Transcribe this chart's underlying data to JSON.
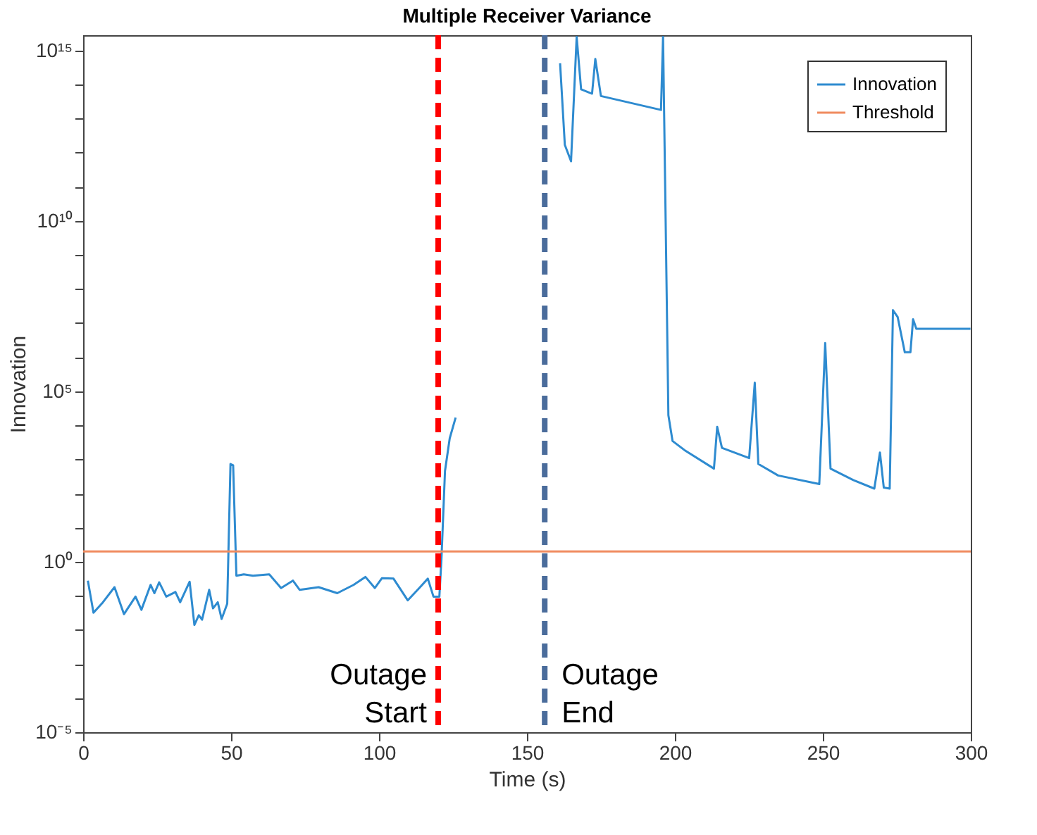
{
  "chart_data": {
    "type": "line",
    "title": "Multiple Receiver Variance",
    "xlabel": "Time (s)",
    "ylabel": "Innovation",
    "series": [
      {
        "name": "Innovation",
        "color": "#2e8bd0",
        "x": [
          1.6,
          3.5,
          6.7,
          10.6,
          13.8,
          17.7,
          19.7,
          22.8,
          24.1,
          25.7,
          28.1,
          31.2,
          32.8,
          36,
          37.6,
          39.1,
          40.2,
          42.6,
          43.9,
          45.5,
          46.8,
          48.7,
          49.8,
          50.7,
          51.8,
          54.3,
          57.4,
          62.9,
          66.9,
          70.9,
          73.2,
          79.6,
          85.9,
          91.4,
          95.4,
          98.6,
          101,
          104.9,
          109.7,
          113.6,
          116.5,
          118.4,
          120.4,
          121.1,
          122.3,
          123.9,
          125.9,
          140,
          161.2,
          162.8,
          164.9,
          166.8,
          168.3,
          172,
          173.1,
          175,
          195.3,
          196,
          197.8,
          199.2,
          203.2,
          213.2,
          214.3,
          215.9,
          225.1,
          227,
          228.2,
          234.9,
          248.8,
          250.8,
          252.6,
          260.3,
          267.4,
          269.3,
          270.6,
          272.6,
          273.7,
          275.3,
          277.7,
          279.6,
          280.5,
          281.6,
          299.9
        ],
        "values": [
          0.28,
          0.032,
          0.065,
          0.18,
          0.029,
          0.095,
          0.039,
          0.21,
          0.12,
          0.25,
          0.095,
          0.13,
          0.065,
          0.26,
          0.014,
          0.027,
          0.02,
          0.15,
          0.043,
          0.065,
          0.021,
          0.059,
          740,
          680,
          0.39,
          0.43,
          0.39,
          0.43,
          0.17,
          0.28,
          0.15,
          0.18,
          0.12,
          0.21,
          0.36,
          0.17,
          0.33,
          0.32,
          0.074,
          0.17,
          0.32,
          0.095,
          0.095,
          1.2,
          460,
          4200,
          17000,
          null,
          420000000000000.0,
          1700000000000.0,
          560000000000.0,
          2500000000000000.0,
          72000000000000.0,
          54000000000000.0,
          560000000000000.0,
          46000000000000.0,
          18000000000000.0,
          2500000000000000.0,
          20000,
          3500,
          1900,
          540,
          9100,
          2200,
          1100,
          180000,
          740,
          340,
          190,
          2600000.0,
          540,
          250,
          140,
          1600,
          150,
          140,
          24000000.0,
          15000000.0,
          1400000.0,
          1400000.0,
          13000000.0,
          6800000.0,
          6800000.0
        ]
      },
      {
        "name": "Threshold",
        "color": "#f08b5f",
        "x": [
          0,
          300
        ],
        "values": [
          2,
          2
        ]
      }
    ],
    "ref_lines": [
      {
        "axis": "x",
        "value": 120,
        "label": "Outage Start",
        "color": "#ff0000",
        "line_style": "dashed"
      },
      {
        "axis": "x",
        "value": 156,
        "label": "Outage End",
        "color": "#4a6c9b",
        "line_style": "dashed"
      }
    ],
    "log": "y",
    "xlim": [
      0,
      300
    ],
    "xticks": [
      0,
      50,
      100,
      150,
      200,
      250,
      300
    ],
    "ylim": [
      1e-05,
      2800000000000000.0
    ],
    "yticks": [
      {
        "value": 1e-05,
        "label": "10⁻⁵"
      },
      {
        "value": 0.0001,
        "label": null
      },
      {
        "value": 0.001,
        "label": null
      },
      {
        "value": 0.01,
        "label": null
      },
      {
        "value": 0.1,
        "label": null
      },
      {
        "value": 1,
        "label": "10⁰"
      },
      {
        "value": 10,
        "label": null
      },
      {
        "value": 100,
        "label": null
      },
      {
        "value": 1000,
        "label": null
      },
      {
        "value": 10000.0,
        "label": null
      },
      {
        "value": 100000.0,
        "label": "10⁵"
      },
      {
        "value": 1000000.0,
        "label": null
      },
      {
        "value": 10000000.0,
        "label": null
      },
      {
        "value": 100000000.0,
        "label": null
      },
      {
        "value": 1000000000.0,
        "label": null
      },
      {
        "value": 10000000000.0,
        "label": "10¹⁰"
      },
      {
        "value": 100000000000.0,
        "label": null
      },
      {
        "value": 1000000000000.0,
        "label": null
      },
      {
        "value": 10000000000000.0,
        "label": null
      },
      {
        "value": 100000000000000.0,
        "label": null
      },
      {
        "value": 1000000000000000.0,
        "label": "10¹⁵"
      }
    ],
    "grid": false,
    "legend": "top right",
    "line_style": "solid",
    "marker": "none"
  }
}
